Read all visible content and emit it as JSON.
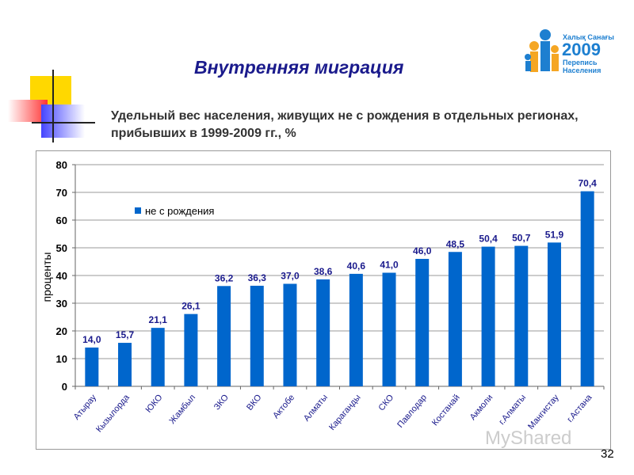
{
  "title": "Внутренняя миграция",
  "subtitle": "Удельный вес населения, живущих не с рождения в отдельных регионах, прибывших в 1999-2009 гг., %",
  "logo": {
    "line1": "Халық Санағы",
    "year": "2009",
    "line2": "Перепись",
    "line3": "Населения"
  },
  "page_number": "32",
  "watermark": "MyShared",
  "chart_data": {
    "type": "bar",
    "categories": [
      "Атырау",
      "Кызылорда",
      "ЮКО",
      "Жамбыл",
      "ЗКО",
      "ВКО",
      "Актобе",
      "Алматы",
      "Караганды",
      "СКО",
      "Павлодар",
      "Костанай",
      "Акмоли",
      "г.Алматы",
      "Мангистау",
      "г.Астана"
    ],
    "series": [
      {
        "name": "не с рождения",
        "values": [
          14.0,
          15.7,
          21.1,
          26.1,
          36.2,
          36.3,
          37.0,
          38.6,
          40.6,
          41.0,
          46.0,
          48.5,
          50.4,
          50.7,
          51.9,
          70.4
        ]
      }
    ],
    "data_labels": [
      "14,0",
      "15,7",
      "21,1",
      "26,1",
      "36,2",
      "36,3",
      "37,0",
      "38,6",
      "40,6",
      "41,0",
      "46,0",
      "48,5",
      "50,4",
      "50,7",
      "51,9",
      "70,4"
    ],
    "ylabel": "проценты",
    "xlabel": "",
    "ylim": [
      0,
      80
    ],
    "yticks": [
      0,
      10,
      20,
      30,
      40,
      50,
      60,
      70,
      80
    ],
    "grid": true,
    "legend": "top-left",
    "color": "#0066cc"
  }
}
